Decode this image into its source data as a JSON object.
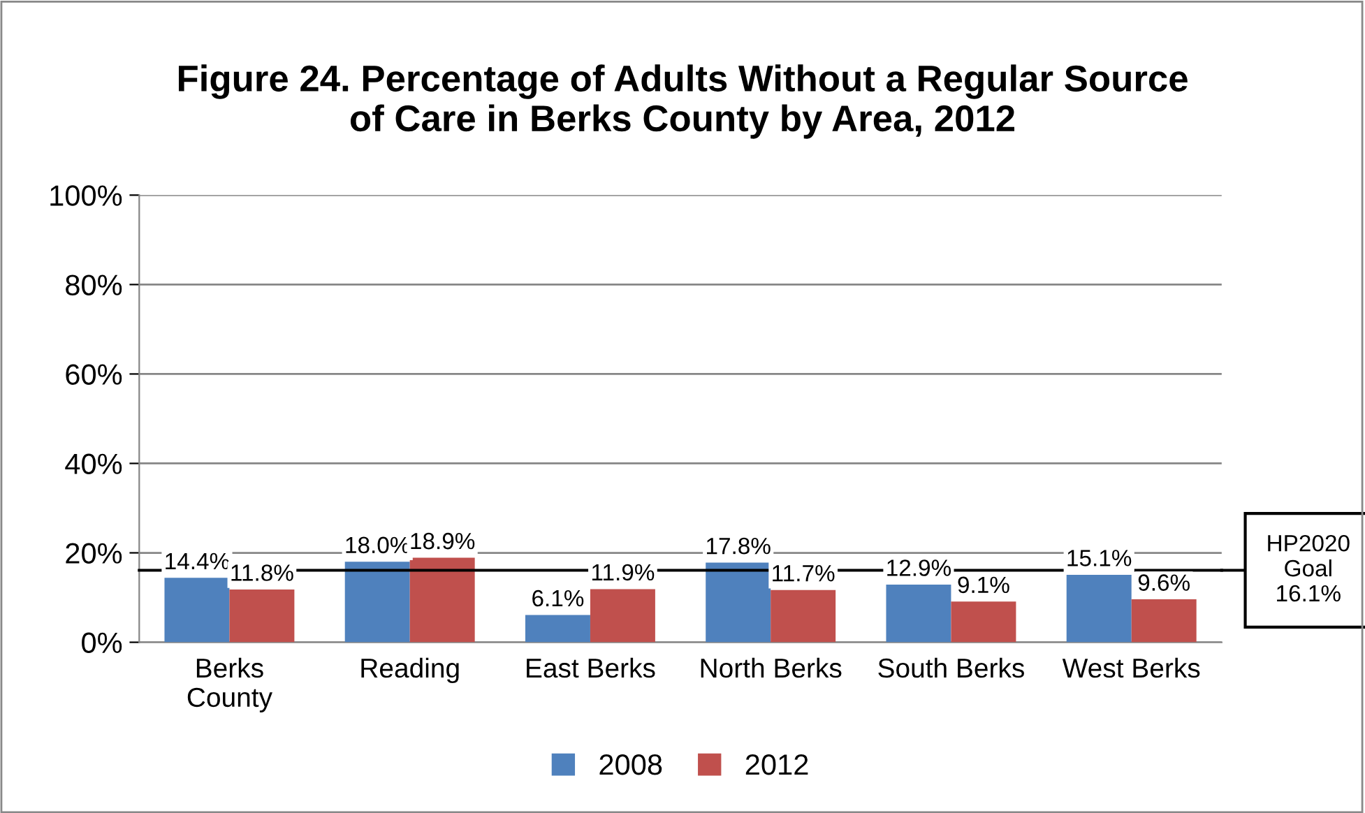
{
  "chart_data": {
    "type": "bar",
    "title": "Figure 24. Percentage of Adults Without a Regular Source\nof Care in Berks County by Area, 2012",
    "categories": [
      "Berks\nCounty",
      "Reading",
      "East Berks",
      "North Berks",
      "South Berks",
      "West Berks"
    ],
    "series": [
      {
        "name": "2008",
        "color": "#4f81bd",
        "values": [
          14.4,
          18.0,
          6.1,
          17.8,
          12.9,
          15.1
        ],
        "value_labels": [
          "14.4%",
          "18.0%",
          "6.1%",
          "17.8%",
          "12.9%",
          "15.1%"
        ]
      },
      {
        "name": "2012",
        "color": "#c0504d",
        "values": [
          11.8,
          18.9,
          11.9,
          11.7,
          9.1,
          9.6
        ],
        "value_labels": [
          "11.8%",
          "18.9%",
          "11.9%",
          "11.7%",
          "9.1%",
          "9.6%"
        ]
      }
    ],
    "ylim": [
      0,
      100
    ],
    "yticks": [
      {
        "value": 0,
        "label": "0%"
      },
      {
        "value": 20,
        "label": "20%"
      },
      {
        "value": 40,
        "label": "40%"
      },
      {
        "value": 60,
        "label": "60%"
      },
      {
        "value": 80,
        "label": "80%"
      },
      {
        "value": 100,
        "label": "100%"
      }
    ],
    "grid": "y",
    "legend": "bottom",
    "ref_lines": [
      {
        "axis": "y",
        "value": 16.1,
        "label": "HP2020\nGoal\n16.1%",
        "color": "#000000"
      }
    ]
  }
}
